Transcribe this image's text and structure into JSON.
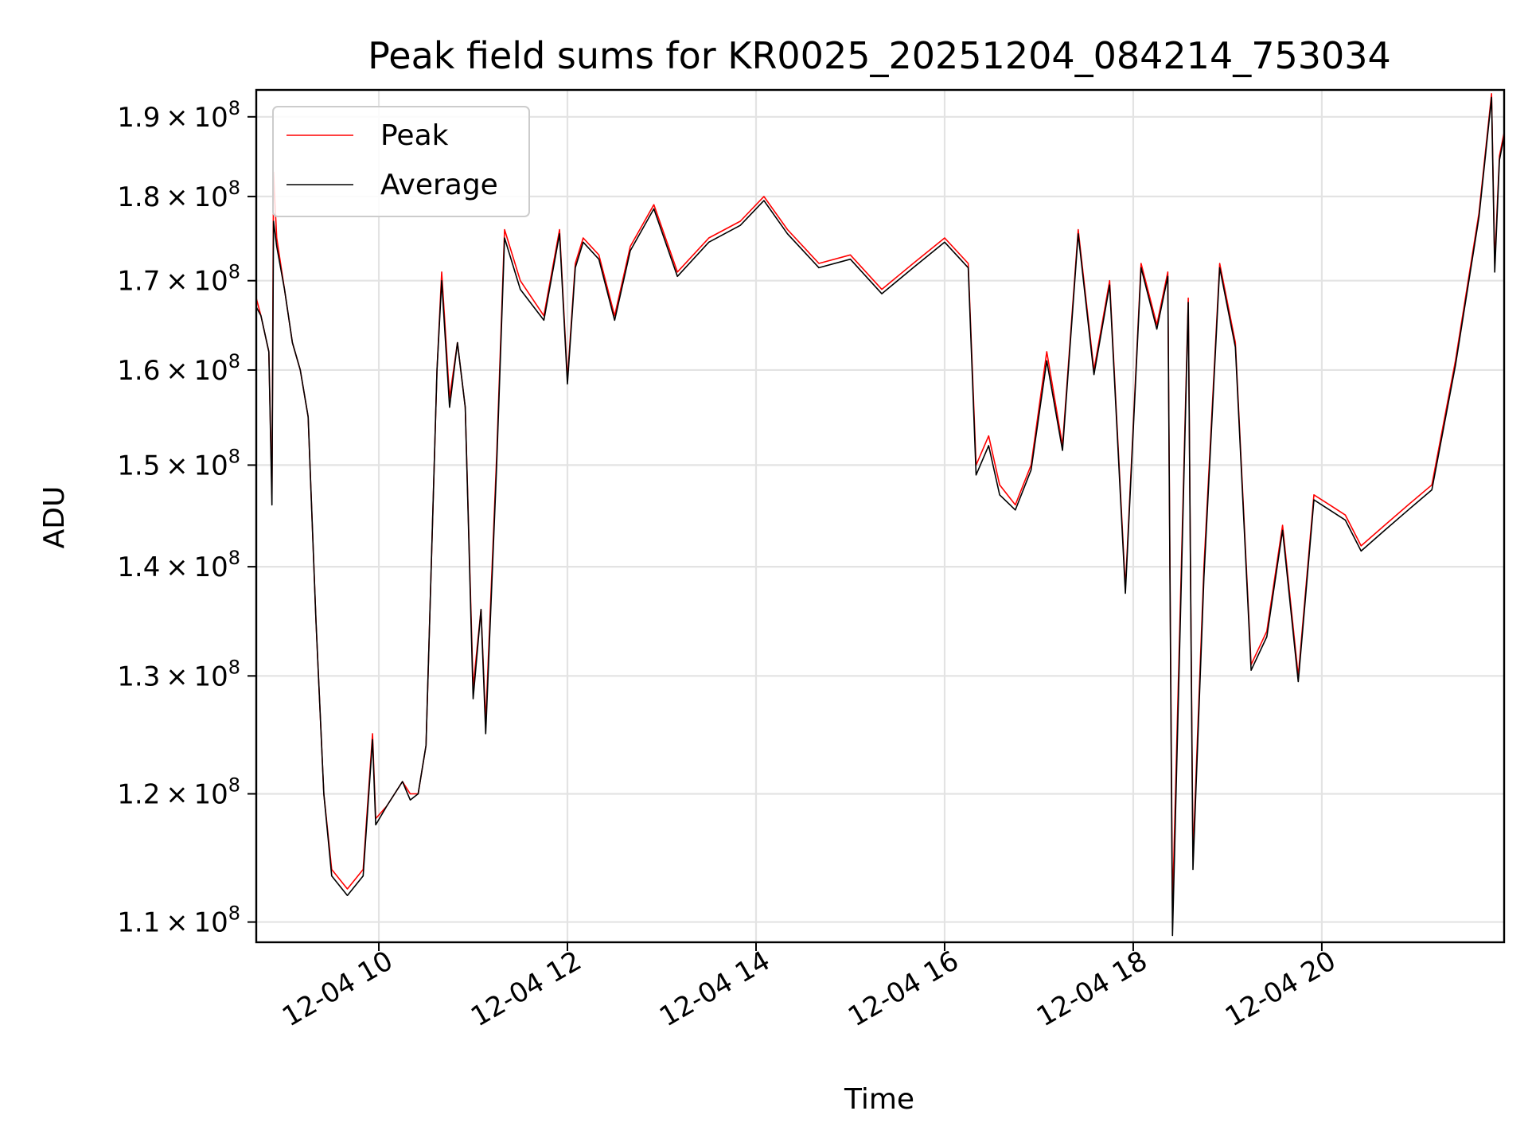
{
  "chart_data": {
    "type": "line",
    "title": "Peak field sums for KR0025_20251204_084214_753034",
    "xlabel": "Time",
    "ylabel": "ADU",
    "yscale": "log",
    "grid": true,
    "legend_position": "top-left",
    "xlim": [
      "2025-12-04 08:42",
      "2025-12-04 21:56"
    ],
    "ylim": [
      108500000.0,
      193500000.0
    ],
    "x_ticks": [
      {
        "value": "2025-12-04 10:00",
        "label": "12-04 10"
      },
      {
        "value": "2025-12-04 12:00",
        "label": "12-04 12"
      },
      {
        "value": "2025-12-04 14:00",
        "label": "12-04 14"
      },
      {
        "value": "2025-12-04 16:00",
        "label": "12-04 16"
      },
      {
        "value": "2025-12-04 18:00",
        "label": "12-04 18"
      },
      {
        "value": "2025-12-04 20:00",
        "label": "12-04 20"
      }
    ],
    "y_ticks": [
      {
        "value": 110000000.0,
        "mantissa": "1.1",
        "exp": "8"
      },
      {
        "value": 120000000.0,
        "mantissa": "1.2",
        "exp": "8"
      },
      {
        "value": 130000000.0,
        "mantissa": "1.3",
        "exp": "8"
      },
      {
        "value": 140000000.0,
        "mantissa": "1.4",
        "exp": "8"
      },
      {
        "value": 150000000.0,
        "mantissa": "1.5",
        "exp": "8"
      },
      {
        "value": 160000000.0,
        "mantissa": "1.6",
        "exp": "8"
      },
      {
        "value": 170000000.0,
        "mantissa": "1.7",
        "exp": "8"
      },
      {
        "value": 180000000.0,
        "mantissa": "1.8",
        "exp": "8"
      },
      {
        "value": 190000000.0,
        "mantissa": "1.9",
        "exp": "8"
      }
    ],
    "series": [
      {
        "name": "Peak",
        "color": "#ff0000",
        "x": [
          "2025-12-04 08:42",
          "2025-12-04 08:45",
          "2025-12-04 08:50",
          "2025-12-04 08:52",
          "2025-12-04 08:53",
          "2025-12-04 08:55",
          "2025-12-04 09:00",
          "2025-12-04 09:05",
          "2025-12-04 09:10",
          "2025-12-04 09:15",
          "2025-12-04 09:20",
          "2025-12-04 09:25",
          "2025-12-04 09:30",
          "2025-12-04 09:40",
          "2025-12-04 09:50",
          "2025-12-04 09:56",
          "2025-12-04 09:58",
          "2025-12-04 10:05",
          "2025-12-04 10:15",
          "2025-12-04 10:20",
          "2025-12-04 10:25",
          "2025-12-04 10:30",
          "2025-12-04 10:37",
          "2025-12-04 10:40",
          "2025-12-04 10:45",
          "2025-12-04 10:50",
          "2025-12-04 10:55",
          "2025-12-04 11:00",
          "2025-12-04 11:05",
          "2025-12-04 11:08",
          "2025-12-04 11:15",
          "2025-12-04 11:20",
          "2025-12-04 11:30",
          "2025-12-04 11:45",
          "2025-12-04 11:55",
          "2025-12-04 12:00",
          "2025-12-04 12:05",
          "2025-12-04 12:10",
          "2025-12-04 12:20",
          "2025-12-04 12:30",
          "2025-12-04 12:40",
          "2025-12-04 12:55",
          "2025-12-04 13:10",
          "2025-12-04 13:30",
          "2025-12-04 13:50",
          "2025-12-04 14:05",
          "2025-12-04 14:20",
          "2025-12-04 14:40",
          "2025-12-04 15:00",
          "2025-12-04 15:20",
          "2025-12-04 15:40",
          "2025-12-04 16:00",
          "2025-12-04 16:15",
          "2025-12-04 16:20",
          "2025-12-04 16:28",
          "2025-12-04 16:35",
          "2025-12-04 16:45",
          "2025-12-04 16:55",
          "2025-12-04 17:05",
          "2025-12-04 17:15",
          "2025-12-04 17:25",
          "2025-12-04 17:35",
          "2025-12-04 17:45",
          "2025-12-04 17:55",
          "2025-12-04 18:05",
          "2025-12-04 18:15",
          "2025-12-04 18:22",
          "2025-12-04 18:25",
          "2025-12-04 18:35",
          "2025-12-04 18:38",
          "2025-12-04 18:45",
          "2025-12-04 18:55",
          "2025-12-04 19:05",
          "2025-12-04 19:15",
          "2025-12-04 19:25",
          "2025-12-04 19:35",
          "2025-12-04 19:45",
          "2025-12-04 19:55",
          "2025-12-04 20:05",
          "2025-12-04 20:15",
          "2025-12-04 20:25",
          "2025-12-04 20:40",
          "2025-12-04 20:55",
          "2025-12-04 21:10",
          "2025-12-04 21:25",
          "2025-12-04 21:40",
          "2025-12-04 21:48",
          "2025-12-04 21:50",
          "2025-12-04 21:53",
          "2025-12-04 21:56"
        ],
        "y": [
          168000000.0,
          166000000.0,
          162000000.0,
          147000000.0,
          183000000.0,
          175000000.0,
          169000000.0,
          163000000.0,
          160000000.0,
          155000000.0,
          135000000.0,
          120000000.0,
          114000000.0,
          112500000.0,
          114000000.0,
          125000000.0,
          118000000.0,
          119000000.0,
          121000000.0,
          120000000.0,
          120000000.0,
          124000000.0,
          160000000.0,
          171000000.0,
          157000000.0,
          163000000.0,
          156000000.0,
          129000000.0,
          136000000.0,
          126000000.0,
          151000000.0,
          176000000.0,
          170000000.0,
          166000000.0,
          176000000.0,
          159000000.0,
          172000000.0,
          175000000.0,
          173000000.0,
          166000000.0,
          174000000.0,
          179000000.0,
          171000000.0,
          175000000.0,
          177000000.0,
          180000000.0,
          176000000.0,
          172000000.0,
          173000000.0,
          169000000.0,
          172000000.0,
          175000000.0,
          172000000.0,
          150000000.0,
          153000000.0,
          148000000.0,
          146000000.0,
          150000000.0,
          162000000.0,
          152000000.0,
          176000000.0,
          160000000.0,
          170000000.0,
          138000000.0,
          172000000.0,
          165000000.0,
          171000000.0,
          111000000.0,
          168000000.0,
          115000000.0,
          140000000.0,
          172000000.0,
          163000000.0,
          131000000.0,
          134000000.0,
          144000000.0,
          130000000.0,
          147000000.0,
          146000000.0,
          145000000.0,
          142000000.0,
          144000000.0,
          146000000.0,
          148000000.0,
          161000000.0,
          178000000.0,
          193000000.0,
          172000000.0,
          185000000.0,
          188000000.0
        ]
      },
      {
        "name": "Average",
        "color": "#000000",
        "x": [
          "2025-12-04 08:42",
          "2025-12-04 08:45",
          "2025-12-04 08:50",
          "2025-12-04 08:52",
          "2025-12-04 08:53",
          "2025-12-04 08:55",
          "2025-12-04 09:00",
          "2025-12-04 09:05",
          "2025-12-04 09:10",
          "2025-12-04 09:15",
          "2025-12-04 09:20",
          "2025-12-04 09:25",
          "2025-12-04 09:30",
          "2025-12-04 09:40",
          "2025-12-04 09:50",
          "2025-12-04 09:56",
          "2025-12-04 09:58",
          "2025-12-04 10:05",
          "2025-12-04 10:15",
          "2025-12-04 10:20",
          "2025-12-04 10:25",
          "2025-12-04 10:30",
          "2025-12-04 10:37",
          "2025-12-04 10:40",
          "2025-12-04 10:45",
          "2025-12-04 10:50",
          "2025-12-04 10:55",
          "2025-12-04 11:00",
          "2025-12-04 11:05",
          "2025-12-04 11:08",
          "2025-12-04 11:15",
          "2025-12-04 11:20",
          "2025-12-04 11:30",
          "2025-12-04 11:45",
          "2025-12-04 11:55",
          "2025-12-04 12:00",
          "2025-12-04 12:05",
          "2025-12-04 12:10",
          "2025-12-04 12:20",
          "2025-12-04 12:30",
          "2025-12-04 12:40",
          "2025-12-04 12:55",
          "2025-12-04 13:10",
          "2025-12-04 13:30",
          "2025-12-04 13:50",
          "2025-12-04 14:05",
          "2025-12-04 14:20",
          "2025-12-04 14:40",
          "2025-12-04 15:00",
          "2025-12-04 15:20",
          "2025-12-04 15:40",
          "2025-12-04 16:00",
          "2025-12-04 16:15",
          "2025-12-04 16:20",
          "2025-12-04 16:28",
          "2025-12-04 16:35",
          "2025-12-04 16:45",
          "2025-12-04 16:55",
          "2025-12-04 17:05",
          "2025-12-04 17:15",
          "2025-12-04 17:25",
          "2025-12-04 17:35",
          "2025-12-04 17:45",
          "2025-12-04 17:55",
          "2025-12-04 18:05",
          "2025-12-04 18:15",
          "2025-12-04 18:22",
          "2025-12-04 18:25",
          "2025-12-04 18:35",
          "2025-12-04 18:38",
          "2025-12-04 18:45",
          "2025-12-04 18:55",
          "2025-12-04 19:05",
          "2025-12-04 19:15",
          "2025-12-04 19:25",
          "2025-12-04 19:35",
          "2025-12-04 19:45",
          "2025-12-04 19:55",
          "2025-12-04 20:05",
          "2025-12-04 20:15",
          "2025-12-04 20:25",
          "2025-12-04 20:40",
          "2025-12-04 20:55",
          "2025-12-04 21:10",
          "2025-12-04 21:25",
          "2025-12-04 21:40",
          "2025-12-04 21:48",
          "2025-12-04 21:50",
          "2025-12-04 21:53",
          "2025-12-04 21:56"
        ],
        "y": [
          167000000.0,
          166000000.0,
          162000000.0,
          146000000.0,
          177000000.0,
          174000000.0,
          169000000.0,
          163000000.0,
          160000000.0,
          155000000.0,
          135000000.0,
          120000000.0,
          113500000.0,
          112000000.0,
          113500000.0,
          124500000.0,
          117500000.0,
          119000000.0,
          121000000.0,
          119500000.0,
          120000000.0,
          124000000.0,
          160000000.0,
          170000000.0,
          156000000.0,
          163000000.0,
          156000000.0,
          128000000.0,
          136000000.0,
          125000000.0,
          150000000.0,
          175000000.0,
          169000000.0,
          165500000.0,
          175500000.0,
          158500000.0,
          171500000.0,
          174500000.0,
          172500000.0,
          165500000.0,
          173500000.0,
          178500000.0,
          170500000.0,
          174500000.0,
          176500000.0,
          179500000.0,
          175500000.0,
          171500000.0,
          172500000.0,
          168500000.0,
          171500000.0,
          174500000.0,
          171500000.0,
          149000000.0,
          152000000.0,
          147000000.0,
          145500000.0,
          149500000.0,
          161000000.0,
          151500000.0,
          175500000.0,
          159500000.0,
          169500000.0,
          137500000.0,
          171500000.0,
          164500000.0,
          170500000.0,
          109000000.0,
          167500000.0,
          114000000.0,
          139000000.0,
          171500000.0,
          162500000.0,
          130500000.0,
          133500000.0,
          143500000.0,
          129500000.0,
          146500000.0,
          145500000.0,
          144500000.0,
          141500000.0,
          143500000.0,
          145500000.0,
          147500000.0,
          160500000.0,
          177500000.0,
          192500000.0,
          171000000.0,
          184500000.0,
          187500000.0
        ]
      }
    ]
  }
}
